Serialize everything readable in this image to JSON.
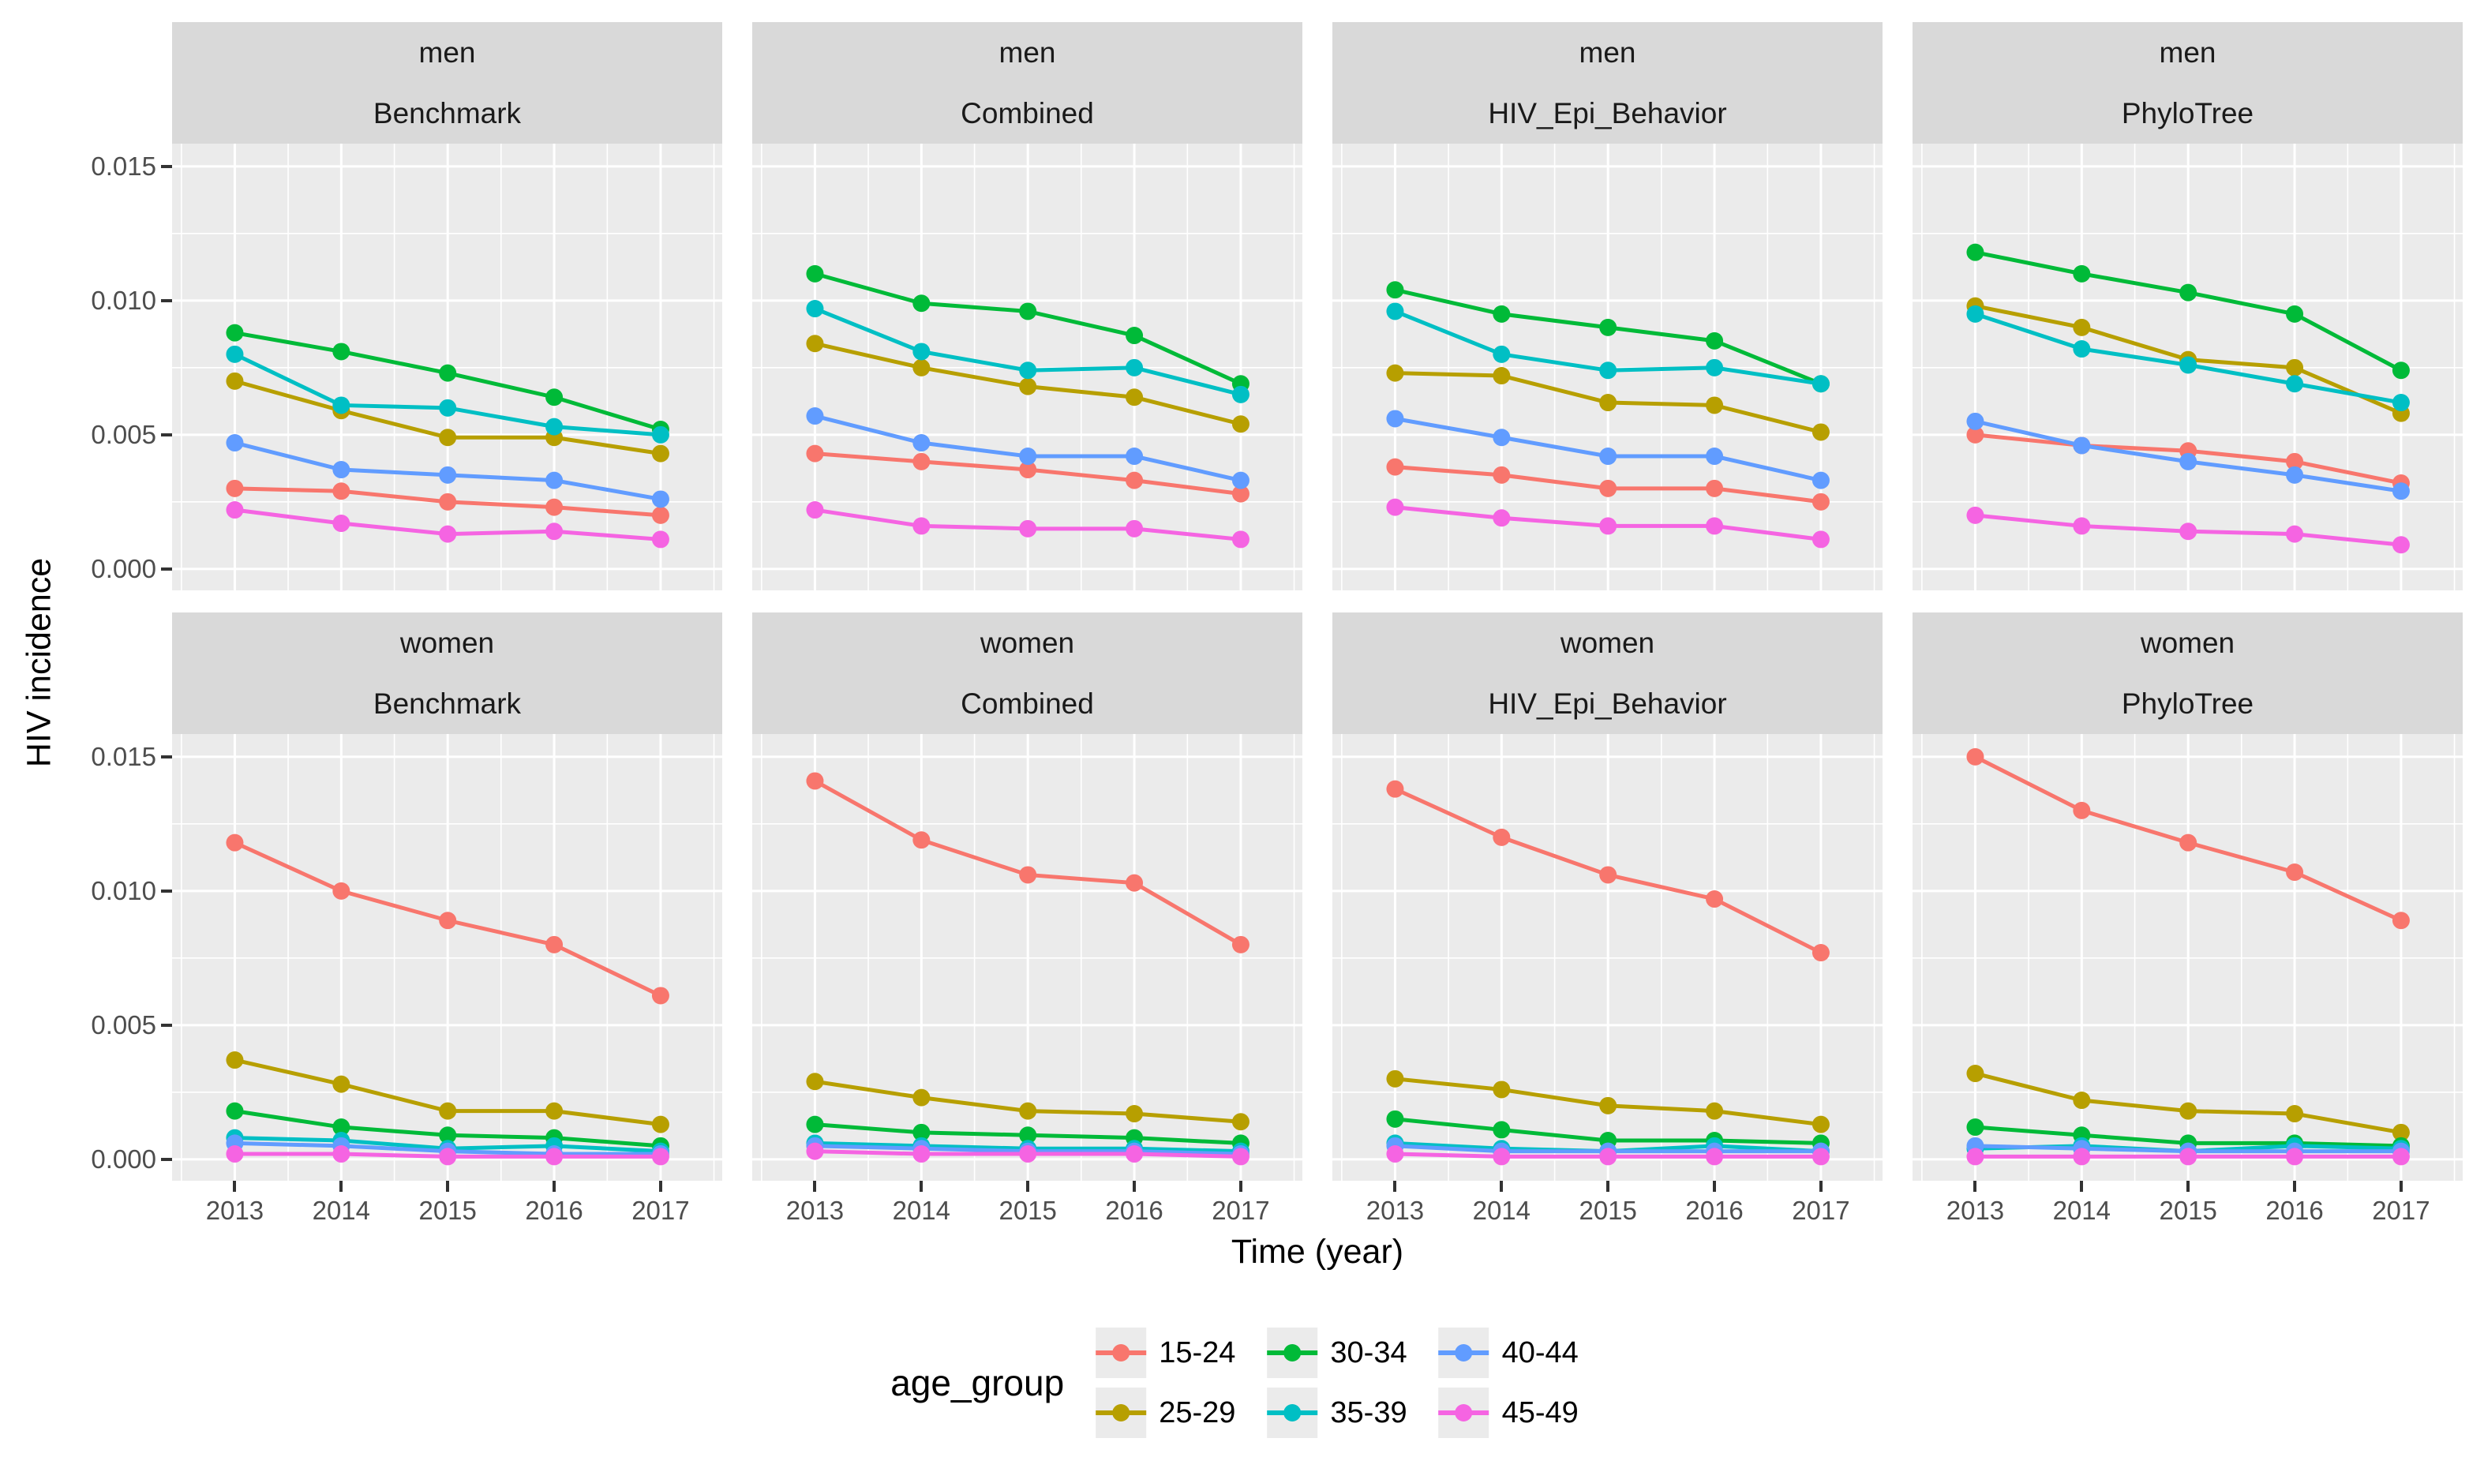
{
  "axes": {
    "x_title": "Time (year)",
    "y_title": "HIV incidence",
    "y_tick_labels": [
      "0.015",
      "0.010",
      "0.005",
      "0.000"
    ],
    "x_tick_labels": [
      "2013",
      "2014",
      "2015",
      "2016",
      "2017"
    ]
  },
  "legend": {
    "title": "age_group",
    "entries": [
      {
        "label": "15-24",
        "color": "#F8766D"
      },
      {
        "label": "25-29",
        "color": "#B79F00"
      },
      {
        "label": "30-34",
        "color": "#00BA38"
      },
      {
        "label": "35-39",
        "color": "#00BFC4"
      },
      {
        "label": "40-44",
        "color": "#619CFF"
      },
      {
        "label": "45-49",
        "color": "#F564E2"
      }
    ]
  },
  "theme": {
    "panel_bg": "#EBEBEB",
    "strip_bg": "#D9D9D9",
    "grid_color": "#FFFFFF",
    "axis_text_color": "#4D4D4D",
    "tick_mark_color": "#333333"
  },
  "chart_data": {
    "type": "line",
    "title": "",
    "xlabel": "Time (year)",
    "ylabel": "HIV incidence",
    "legend_title": "age_group",
    "legend_position": "bottom",
    "grid": true,
    "x": [
      2013,
      2014,
      2015,
      2016,
      2017
    ],
    "ylim": [
      0,
      0.015
    ],
    "y_major_ticks": [
      0.015,
      0.01,
      0.005,
      0.0
    ],
    "y_minor_ticks": [
      0.0125,
      0.0075,
      0.0025
    ],
    "facet_rows": [
      "men",
      "women"
    ],
    "facet_cols": [
      "Benchmark",
      "Combined",
      "HIV_Epi_Behavior",
      "PhyloTree"
    ],
    "series_names": [
      "15-24",
      "25-29",
      "30-34",
      "35-39",
      "40-44",
      "45-49"
    ],
    "facets": [
      {
        "row": "men",
        "col": "Benchmark",
        "series": [
          {
            "name": "15-24",
            "values": [
              0.003,
              0.0029,
              0.0025,
              0.0023,
              0.002
            ]
          },
          {
            "name": "25-29",
            "values": [
              0.007,
              0.0059,
              0.0049,
              0.0049,
              0.0043
            ]
          },
          {
            "name": "30-34",
            "values": [
              0.0088,
              0.0081,
              0.0073,
              0.0064,
              0.0052
            ]
          },
          {
            "name": "35-39",
            "values": [
              0.008,
              0.0061,
              0.006,
              0.0053,
              0.005
            ]
          },
          {
            "name": "40-44",
            "values": [
              0.0047,
              0.0037,
              0.0035,
              0.0033,
              0.0026
            ]
          },
          {
            "name": "45-49",
            "values": [
              0.0022,
              0.0017,
              0.0013,
              0.0014,
              0.0011
            ]
          }
        ]
      },
      {
        "row": "men",
        "col": "Combined",
        "series": [
          {
            "name": "15-24",
            "values": [
              0.0043,
              0.004,
              0.0037,
              0.0033,
              0.0028
            ]
          },
          {
            "name": "25-29",
            "values": [
              0.0084,
              0.0075,
              0.0068,
              0.0064,
              0.0054
            ]
          },
          {
            "name": "30-34",
            "values": [
              0.011,
              0.0099,
              0.0096,
              0.0087,
              0.0069
            ]
          },
          {
            "name": "35-39",
            "values": [
              0.0097,
              0.0081,
              0.0074,
              0.0075,
              0.0065
            ]
          },
          {
            "name": "40-44",
            "values": [
              0.0057,
              0.0047,
              0.0042,
              0.0042,
              0.0033
            ]
          },
          {
            "name": "45-49",
            "values": [
              0.0022,
              0.0016,
              0.0015,
              0.0015,
              0.0011
            ]
          }
        ]
      },
      {
        "row": "men",
        "col": "HIV_Epi_Behavior",
        "series": [
          {
            "name": "15-24",
            "values": [
              0.0038,
              0.0035,
              0.003,
              0.003,
              0.0025
            ]
          },
          {
            "name": "25-29",
            "values": [
              0.0073,
              0.0072,
              0.0062,
              0.0061,
              0.0051
            ]
          },
          {
            "name": "30-34",
            "values": [
              0.0104,
              0.0095,
              0.009,
              0.0085,
              0.0069
            ]
          },
          {
            "name": "35-39",
            "values": [
              0.0096,
              0.008,
              0.0074,
              0.0075,
              0.0069
            ]
          },
          {
            "name": "40-44",
            "values": [
              0.0056,
              0.0049,
              0.0042,
              0.0042,
              0.0033
            ]
          },
          {
            "name": "45-49",
            "values": [
              0.0023,
              0.0019,
              0.0016,
              0.0016,
              0.0011
            ]
          }
        ]
      },
      {
        "row": "men",
        "col": "PhyloTree",
        "series": [
          {
            "name": "15-24",
            "values": [
              0.005,
              0.0046,
              0.0044,
              0.004,
              0.0032
            ]
          },
          {
            "name": "25-29",
            "values": [
              0.0098,
              0.009,
              0.0078,
              0.0075,
              0.0058
            ]
          },
          {
            "name": "30-34",
            "values": [
              0.0118,
              0.011,
              0.0103,
              0.0095,
              0.0074
            ]
          },
          {
            "name": "35-39",
            "values": [
              0.0095,
              0.0082,
              0.0076,
              0.0069,
              0.0062
            ]
          },
          {
            "name": "40-44",
            "values": [
              0.0055,
              0.0046,
              0.004,
              0.0035,
              0.0029
            ]
          },
          {
            "name": "45-49",
            "values": [
              0.002,
              0.0016,
              0.0014,
              0.0013,
              0.0009
            ]
          }
        ]
      },
      {
        "row": "women",
        "col": "Benchmark",
        "series": [
          {
            "name": "15-24",
            "values": [
              0.0118,
              0.01,
              0.0089,
              0.008,
              0.0061
            ]
          },
          {
            "name": "25-29",
            "values": [
              0.0037,
              0.0028,
              0.0018,
              0.0018,
              0.0013
            ]
          },
          {
            "name": "30-34",
            "values": [
              0.0018,
              0.0012,
              0.0009,
              0.0008,
              0.0005
            ]
          },
          {
            "name": "35-39",
            "values": [
              0.0008,
              0.0007,
              0.0004,
              0.0005,
              0.0003
            ]
          },
          {
            "name": "40-44",
            "values": [
              0.0006,
              0.0005,
              0.0003,
              0.0002,
              0.0002
            ]
          },
          {
            "name": "45-49",
            "values": [
              0.0002,
              0.0002,
              0.0001,
              0.0001,
              0.0001
            ]
          }
        ]
      },
      {
        "row": "women",
        "col": "Combined",
        "series": [
          {
            "name": "15-24",
            "values": [
              0.0141,
              0.0119,
              0.0106,
              0.0103,
              0.008
            ]
          },
          {
            "name": "25-29",
            "values": [
              0.0029,
              0.0023,
              0.0018,
              0.0017,
              0.0014
            ]
          },
          {
            "name": "30-34",
            "values": [
              0.0013,
              0.001,
              0.0009,
              0.0008,
              0.0006
            ]
          },
          {
            "name": "35-39",
            "values": [
              0.0006,
              0.0005,
              0.0004,
              0.0004,
              0.0003
            ]
          },
          {
            "name": "40-44",
            "values": [
              0.0005,
              0.0004,
              0.0003,
              0.0003,
              0.0002
            ]
          },
          {
            "name": "45-49",
            "values": [
              0.0003,
              0.0002,
              0.0002,
              0.0002,
              0.0001
            ]
          }
        ]
      },
      {
        "row": "women",
        "col": "HIV_Epi_Behavior",
        "series": [
          {
            "name": "15-24",
            "values": [
              0.0138,
              0.012,
              0.0106,
              0.0097,
              0.0077
            ]
          },
          {
            "name": "25-29",
            "values": [
              0.003,
              0.0026,
              0.002,
              0.0018,
              0.0013
            ]
          },
          {
            "name": "30-34",
            "values": [
              0.0015,
              0.0011,
              0.0007,
              0.0007,
              0.0006
            ]
          },
          {
            "name": "35-39",
            "values": [
              0.0006,
              0.0004,
              0.0003,
              0.0005,
              0.0003
            ]
          },
          {
            "name": "40-44",
            "values": [
              0.0005,
              0.0003,
              0.0003,
              0.0003,
              0.0003
            ]
          },
          {
            "name": "45-49",
            "values": [
              0.0002,
              0.0001,
              0.0001,
              0.0001,
              0.0001
            ]
          }
        ]
      },
      {
        "row": "women",
        "col": "PhyloTree",
        "series": [
          {
            "name": "15-24",
            "values": [
              0.015,
              0.013,
              0.0118,
              0.0107,
              0.0089
            ]
          },
          {
            "name": "25-29",
            "values": [
              0.0032,
              0.0022,
              0.0018,
              0.0017,
              0.001
            ]
          },
          {
            "name": "30-34",
            "values": [
              0.0012,
              0.0009,
              0.0006,
              0.0006,
              0.0005
            ]
          },
          {
            "name": "35-39",
            "values": [
              0.0004,
              0.0005,
              0.0003,
              0.0005,
              0.0004
            ]
          },
          {
            "name": "40-44",
            "values": [
              0.0005,
              0.0004,
              0.0003,
              0.0003,
              0.0003
            ]
          },
          {
            "name": "45-49",
            "values": [
              0.0001,
              0.0001,
              0.0001,
              0.0001,
              0.0001
            ]
          }
        ]
      }
    ]
  }
}
